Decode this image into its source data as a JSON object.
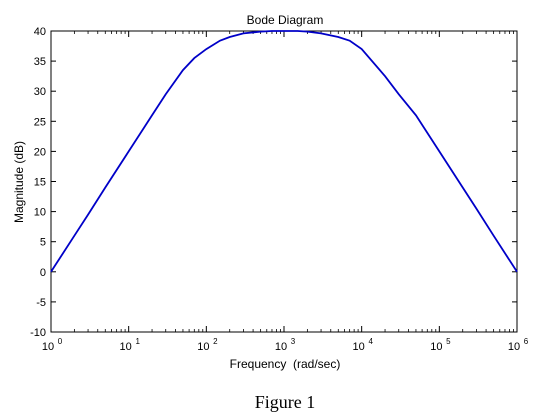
{
  "chart_data": {
    "type": "line",
    "title": "Bode Diagram",
    "xlabel": "Frequency  (rad/sec)",
    "ylabel": "Magnitude (dB)",
    "xscale": "log",
    "xlim": [
      1,
      1000000
    ],
    "ylim": [
      -10,
      40
    ],
    "grid": false,
    "x_ticks": [
      {
        "value": 1,
        "base": "10",
        "exp": "0"
      },
      {
        "value": 10,
        "base": "10",
        "exp": "1"
      },
      {
        "value": 100,
        "base": "10",
        "exp": "2"
      },
      {
        "value": 1000,
        "base": "10",
        "exp": "3"
      },
      {
        "value": 10000,
        "base": "10",
        "exp": "4"
      },
      {
        "value": 100000,
        "base": "10",
        "exp": "5"
      },
      {
        "value": 1000000,
        "base": "10",
        "exp": "6"
      }
    ],
    "y_ticks": [
      40,
      35,
      30,
      25,
      20,
      15,
      10,
      5,
      0,
      -5,
      -10
    ],
    "line_color": "#0000c8",
    "series": [
      {
        "x": [
          1,
          2,
          3,
          5,
          10,
          20,
          30,
          50,
          70,
          100,
          150,
          200,
          300,
          500,
          700,
          1000,
          1500,
          2000,
          3000,
          5000,
          7000,
          10000,
          20000,
          30000,
          50000,
          100000,
          200000,
          300000,
          500000,
          1000000
        ],
        "y": [
          0,
          6,
          9.5,
          14,
          20,
          26,
          29.5,
          33.5,
          35.5,
          37,
          38.4,
          39,
          39.6,
          39.9,
          40,
          40,
          40,
          39.9,
          39.6,
          39,
          38.4,
          37,
          32.5,
          29.5,
          26,
          20,
          14,
          10.5,
          6,
          0
        ]
      }
    ]
  },
  "caption": "Figure 1"
}
